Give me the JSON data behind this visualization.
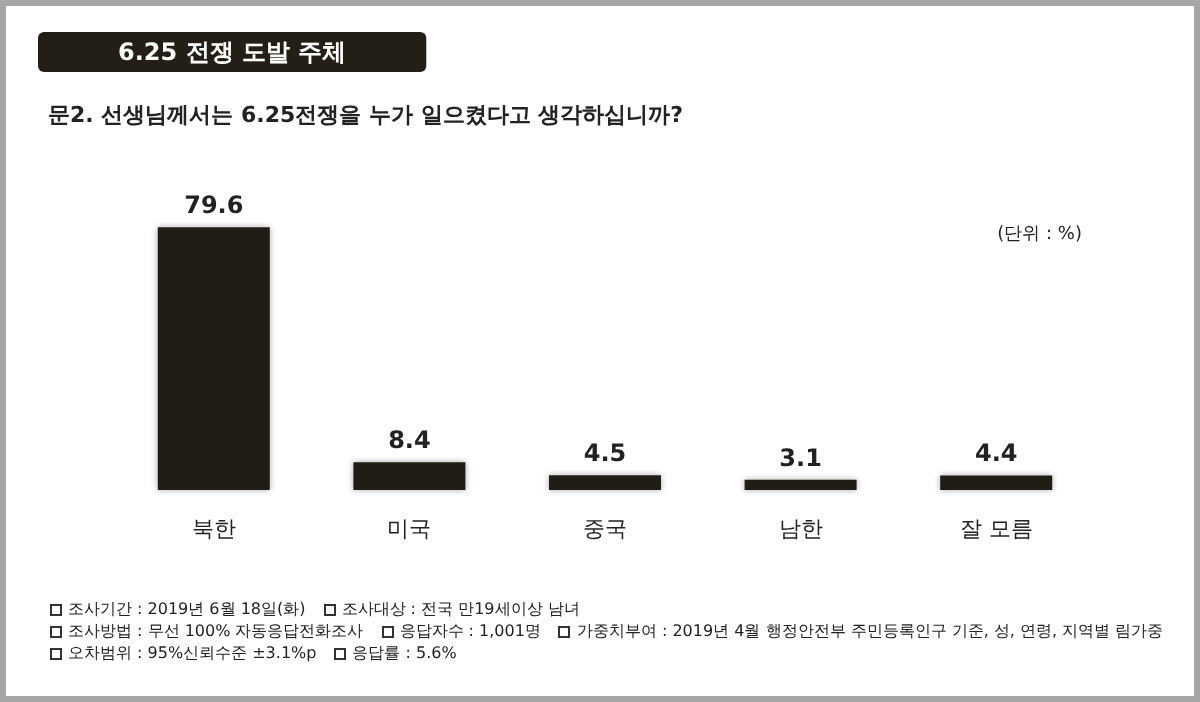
{
  "chart_data": {
    "type": "bar",
    "title": "6.25 전쟁 도발 주체",
    "subtitle": "문2. 선생님께서는 6.25전쟁을 누가 일으켰다고 생각하십니까?",
    "categories": [
      "북한",
      "미국",
      "중국",
      "남한",
      "잘 모름"
    ],
    "values": [
      79.6,
      8.4,
      4.5,
      3.1,
      4.4
    ],
    "color": "#231f16",
    "data_labels": true,
    "annotations": [
      "(단위 : %)",
      "조사기간 : 2019년 6월 18일(화)",
      "조사대상 : 전국 만19세이상 남녀",
      "조사방법 : 무선 100% 자동응답전화조사",
      "응답자수 : 1,001명",
      "가중치부여 : 2019년 4월 행정안전부 주민등록인구 기준, 성, 연령, 지역별 림가중",
      "오차범위 : 95%신뢰수준 ±3.1%p",
      "응답률 : 5.6%"
    ]
  }
}
